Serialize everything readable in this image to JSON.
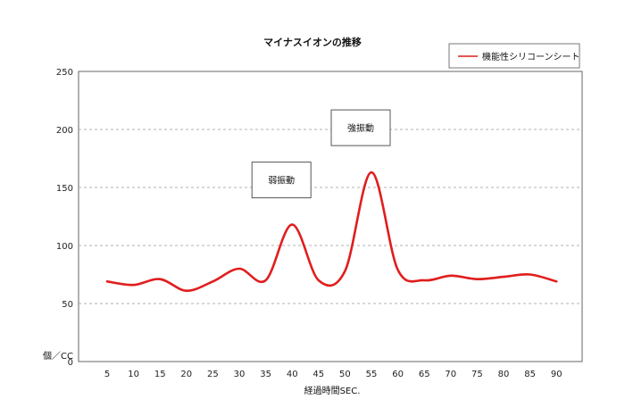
{
  "chart_data": {
    "type": "line",
    "title": "マイナスイオンの推移",
    "xlabel": "経過時間SEC.",
    "ylabel": "個／CC",
    "x": [
      5,
      10,
      15,
      20,
      25,
      30,
      35,
      40,
      45,
      50,
      55,
      60,
      65,
      70,
      75,
      80,
      85,
      90
    ],
    "series": [
      {
        "name": "機能性シリコーンシート",
        "color": "#e11d1d",
        "values": [
          69,
          66,
          71,
          61,
          69,
          80,
          70,
          118,
          70,
          78,
          163,
          79,
          70,
          74,
          71,
          73,
          75,
          69
        ]
      }
    ],
    "ylim": [
      0,
      250
    ],
    "yticks": [
      0,
      50,
      100,
      150,
      200,
      250
    ],
    "grid": true,
    "legend_position": "top-right",
    "annotations": [
      {
        "text": "弱振動",
        "x": 40,
        "y": 118
      },
      {
        "text": "強振動",
        "x": 55,
        "y": 163
      }
    ]
  }
}
